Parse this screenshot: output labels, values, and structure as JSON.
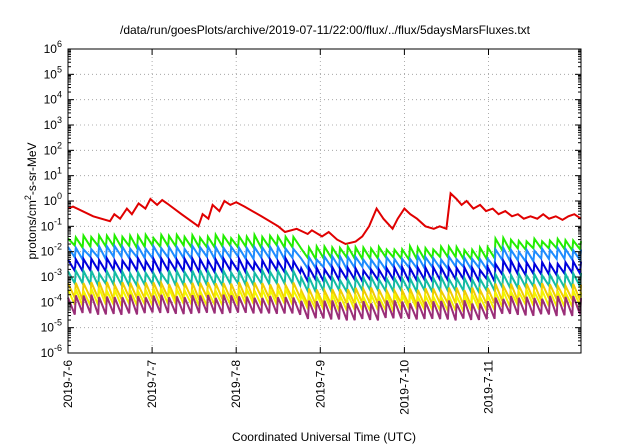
{
  "chart_data": {
    "type": "line",
    "title": "/data/run/goesPlots/archive/2019-07-11/22:00/flux/../flux/5daysMarsFluxes.txt",
    "xlabel": "Coordinated Universal Time (UTC)",
    "ylabel": {
      "prefix": "protons/cm",
      "sup": "2",
      "suffix": "-s-sr-MeV"
    },
    "y_scale": "log",
    "ylim_exp": [
      -6,
      6
    ],
    "y_ticks": [
      {
        "base": "10",
        "exp": "6"
      },
      {
        "base": "10",
        "exp": "5"
      },
      {
        "base": "10",
        "exp": "4"
      },
      {
        "base": "10",
        "exp": "3"
      },
      {
        "base": "10",
        "exp": "2"
      },
      {
        "base": "10",
        "exp": "1"
      },
      {
        "base": "10",
        "exp": "0"
      },
      {
        "base": "10",
        "exp": "-1"
      },
      {
        "base": "10",
        "exp": "-2"
      },
      {
        "base": "10",
        "exp": "-3"
      },
      {
        "base": "10",
        "exp": "-4"
      },
      {
        "base": "10",
        "exp": "-5"
      },
      {
        "base": "10",
        "exp": "-6"
      }
    ],
    "x_ticks": [
      "2019-7-6",
      "2019-7-7",
      "2019-7-8",
      "2019-7-9",
      "2019-7-10",
      "2019-7-11"
    ],
    "x_range_days": [
      0,
      6.1
    ],
    "grid": true,
    "legend": "none",
    "series": [
      {
        "color": "#e00000",
        "x": [
          0,
          0.06,
          0.3,
          0.5,
          0.55,
          0.62,
          0.7,
          0.76,
          0.84,
          0.92,
          0.98,
          1.06,
          1.12,
          1.18,
          1.35,
          1.55,
          1.6,
          1.67,
          1.72,
          1.8,
          1.86,
          1.93,
          2.0,
          2.1,
          2.3,
          2.5,
          2.58,
          2.72,
          2.85,
          2.9,
          3.02,
          3.1,
          3.2,
          3.3,
          3.42,
          3.5,
          3.58,
          3.67,
          3.75,
          3.86,
          3.92,
          4.0,
          4.07,
          4.15,
          4.25,
          4.35,
          4.42,
          4.5,
          4.55,
          4.62,
          4.68,
          4.74,
          4.82,
          4.9,
          4.97,
          5.05,
          5.12,
          5.2,
          5.28,
          5.35,
          5.42,
          5.5,
          5.58,
          5.65,
          5.72,
          5.8,
          5.88,
          5.95,
          6.02,
          6.1
        ],
        "y": [
          0.5,
          0.6,
          0.25,
          0.16,
          0.3,
          0.2,
          0.5,
          0.3,
          0.8,
          0.5,
          1.2,
          0.7,
          1.1,
          0.8,
          0.3,
          0.1,
          0.3,
          0.2,
          0.7,
          0.4,
          1.0,
          0.7,
          0.9,
          0.6,
          0.25,
          0.1,
          0.06,
          0.08,
          0.05,
          0.07,
          0.04,
          0.06,
          0.03,
          0.02,
          0.025,
          0.04,
          0.1,
          0.5,
          0.2,
          0.08,
          0.2,
          0.5,
          0.3,
          0.2,
          0.1,
          0.08,
          0.1,
          0.08,
          2.0,
          1.2,
          0.7,
          1.0,
          0.5,
          0.7,
          0.4,
          0.5,
          0.3,
          0.4,
          0.25,
          0.3,
          0.2,
          0.25,
          0.2,
          0.3,
          0.2,
          0.25,
          0.18,
          0.25,
          0.3,
          0.2
        ]
      },
      {
        "color": "#22ee00",
        "base": 0.025,
        "tail_gain": 1.2,
        "amp": 1.6,
        "drop": 0.35,
        "noise": 1.4
      },
      {
        "color": "#1e8cff",
        "base": 0.009,
        "tail_gain": 1.1,
        "amp": 1.6,
        "drop": 0.4,
        "noise": 1.4
      },
      {
        "color": "#0000dd",
        "base": 0.0028,
        "tail_gain": 0.8,
        "amp": 1.7,
        "drop": 0.45,
        "noise": 1.3
      },
      {
        "color": "#14bca4",
        "base": 0.0009,
        "tail_gain": 0.5,
        "amp": 1.8,
        "drop": 0.55,
        "noise": 1.3
      },
      {
        "color": "#f0cc00",
        "base": 0.00028,
        "tail_gain": 0.5,
        "amp": 2.0,
        "drop": 0.6,
        "noise": 1.2
      },
      {
        "color": "#f4f400",
        "base": 0.00016,
        "tail_gain": 0.5,
        "amp": 2.0,
        "drop": 0.6,
        "noise": 1.2
      },
      {
        "color": "#9a2e78",
        "base": 8e-05,
        "tail_gain": 0.5,
        "amp": 2.2,
        "drop": 0.6,
        "noise": 1.2
      }
    ]
  }
}
